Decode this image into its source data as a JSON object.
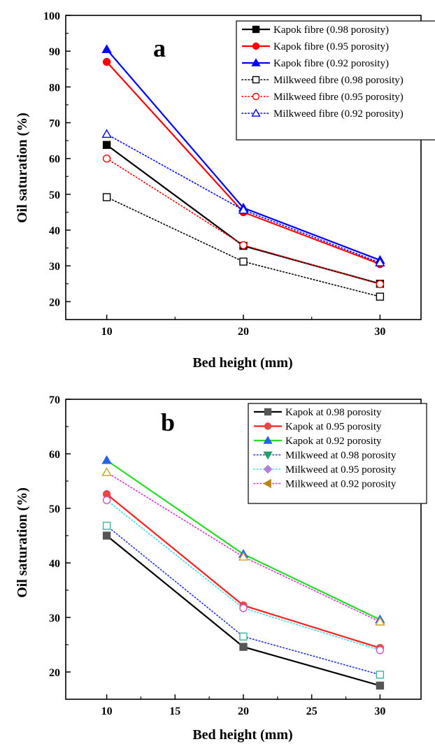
{
  "chart_data": [
    {
      "type": "line",
      "panel_label": "a",
      "xlabel": "Bed height (mm)",
      "ylabel": "Oil saturation (%)",
      "xlim": [
        7,
        33
      ],
      "ylim": [
        15,
        100
      ],
      "x_ticks": [
        10,
        20,
        30
      ],
      "y_ticks": [
        20,
        30,
        40,
        50,
        60,
        70,
        80,
        90,
        100
      ],
      "legend_position": "top-right",
      "grid": false,
      "x": [
        10,
        20,
        30
      ],
      "series": [
        {
          "name": "Kapok fibre (0.98 porosity)",
          "values": [
            63.8,
            35.6,
            25.0
          ],
          "color": "#000000",
          "line": "solid",
          "marker": "square",
          "fill": "filled"
        },
        {
          "name": "Kapok fibre (0.95 porosity)",
          "values": [
            87.0,
            45.0,
            30.5
          ],
          "color": "#ff0000",
          "line": "solid",
          "marker": "circle",
          "fill": "filled"
        },
        {
          "name": "Kapok fibre (0.92 porosity)",
          "values": [
            90.5,
            46.2,
            31.6
          ],
          "color": "#0000ff",
          "line": "solid",
          "marker": "triangle-up",
          "fill": "filled"
        },
        {
          "name": "Milkweed fibre (0.98 porosity)",
          "values": [
            49.2,
            31.2,
            21.4
          ],
          "color": "#000000",
          "line": "dotted",
          "marker": "square",
          "fill": "open"
        },
        {
          "name": "Milkweed fibre (0.95 porosity)",
          "values": [
            60.0,
            35.8,
            24.9
          ],
          "color": "#ff0000",
          "line": "dotted",
          "marker": "circle",
          "fill": "open"
        },
        {
          "name": "Milkweed fibre (0.92 porosity)",
          "values": [
            66.8,
            45.6,
            30.9
          ],
          "color": "#0000ff",
          "line": "dotted",
          "marker": "triangle-up",
          "fill": "open"
        }
      ]
    },
    {
      "type": "line",
      "panel_label": "b",
      "xlabel": "Bed height (mm)",
      "ylabel": "Oil saturation (%)",
      "xlim": [
        7,
        33
      ],
      "ylim": [
        15,
        70
      ],
      "x_ticks": [
        10,
        15,
        20,
        25,
        30
      ],
      "y_ticks": [
        20,
        30,
        40,
        50,
        60,
        70
      ],
      "legend_position": "top-right",
      "grid": false,
      "x": [
        10,
        20,
        30
      ],
      "series": [
        {
          "name": "Kapok at 0.98 porosity",
          "values": [
            45.0,
            24.6,
            17.5
          ],
          "color": "#000000",
          "line": "solid",
          "marker": "square",
          "marker_color": "#555555",
          "fill": "filled"
        },
        {
          "name": "Kapok at 0.95 porosity",
          "values": [
            52.6,
            32.2,
            24.4
          ],
          "color": "#ff2020",
          "line": "solid",
          "marker": "circle",
          "marker_color": "#ef4444",
          "fill": "filled"
        },
        {
          "name": "Kapok at 0.92 porosity",
          "values": [
            58.8,
            41.6,
            29.6
          ],
          "color": "#22dd22",
          "line": "solid",
          "marker": "triangle-up",
          "marker_color": "#2563eb",
          "fill": "filled"
        },
        {
          "name": "Milkweed at 0.98 porosity",
          "values": [
            46.8,
            26.5,
            19.5
          ],
          "color": "#2233cc",
          "line": "dotted",
          "marker": "square",
          "marker_color": "#3cb39b",
          "fill": "open",
          "legend_marker": "triangle-down",
          "legend_marker_color": "#22a06b"
        },
        {
          "name": "Milkweed at 0.95 porosity",
          "values": [
            51.5,
            31.7,
            24.0
          ],
          "color": "#33ddee",
          "line": "dotted",
          "marker": "circle",
          "marker_color": "#c65ac6",
          "fill": "open",
          "legend_marker": "diamond",
          "legend_marker_color": "#b57edc"
        },
        {
          "name": "Milkweed at 0.92 porosity",
          "values": [
            56.6,
            41.1,
            29.2
          ],
          "color": "#dd33dd",
          "line": "dotted",
          "marker": "triangle-up",
          "marker_color": "#c9a227",
          "fill": "open",
          "legend_marker": "triangle-left",
          "legend_marker_color": "#b8860b"
        }
      ]
    }
  ]
}
